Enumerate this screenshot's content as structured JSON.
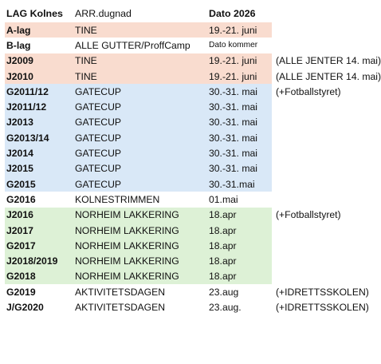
{
  "colors": {
    "pink": "#f9dccf",
    "blue": "#d9e8f7",
    "green": "#ddf1d6",
    "white": "#ffffff"
  },
  "header": {
    "lag": "LAG Kolnes",
    "arr": "ARR.dugnad",
    "dato": "Dato 2026"
  },
  "rows": [
    {
      "lag": "A-lag",
      "arr": "TINE",
      "dato": "19.-21. juni",
      "note": "",
      "color": "pink"
    },
    {
      "lag": "B-lag",
      "arr": "ALLE GUTTER/ProffCamp",
      "dato": "Dato kommer",
      "note": "",
      "color": "white"
    },
    {
      "lag": "J2009",
      "arr": "TINE",
      "dato": "19.-21. juni",
      "note": "(ALLE JENTER 14. mai)",
      "color": "pink"
    },
    {
      "lag": "J2010",
      "arr": "TINE",
      "dato": "19.-21. juni",
      "note": "(ALLE JENTER 14. mai)",
      "color": "pink"
    },
    {
      "lag": "G2011/12",
      "arr": "GATECUP",
      "dato": "30.-31. mai",
      "note": "(+Fotballstyret)",
      "color": "blue"
    },
    {
      "lag": "J2011/12",
      "arr": "GATECUP",
      "dato": "30.-31. mai",
      "note": "",
      "color": "blue"
    },
    {
      "lag": "J2013",
      "arr": "GATECUP",
      "dato": "30.-31. mai",
      "note": "",
      "color": "blue"
    },
    {
      "lag": "G2013/14",
      "arr": "GATECUP",
      "dato": "30.-31. mai",
      "note": "",
      "color": "blue"
    },
    {
      "lag": "J2014",
      "arr": "GATECUP",
      "dato": "30.-31. mai",
      "note": "",
      "color": "blue"
    },
    {
      "lag": "J2015",
      "arr": "GATECUP",
      "dato": "30.-31. mai",
      "note": "",
      "color": "blue"
    },
    {
      "lag": "G2015",
      "arr": "GATECUP",
      "dato": "30.-31.mai",
      "note": "",
      "color": "blue"
    },
    {
      "lag": "G2016",
      "arr": "KOLNESTRIMMEN",
      "dato": "01.mai",
      "note": "",
      "color": "white"
    },
    {
      "lag": "J2016",
      "arr": "NORHEIM LAKKERING",
      "dato": "18.apr",
      "note": "(+Fotballstyret)",
      "color": "green"
    },
    {
      "lag": "J2017",
      "arr": "NORHEIM LAKKERING",
      "dato": "18.apr",
      "note": "",
      "color": "green"
    },
    {
      "lag": "G2017",
      "arr": "NORHEIM LAKKERING",
      "dato": "18.apr",
      "note": "",
      "color": "green"
    },
    {
      "lag": "J2018/2019",
      "arr": "NORHEIM LAKKERING",
      "dato": "18.apr",
      "note": "",
      "color": "green"
    },
    {
      "lag": "G2018",
      "arr": "NORHEIM LAKKERING",
      "dato": "18.apr",
      "note": "",
      "color": "green"
    },
    {
      "lag": "G2019",
      "arr": "AKTIVITETSDAGEN",
      "dato": "23.aug",
      "note": "(+IDRETTSSKOLEN)",
      "color": "white"
    },
    {
      "lag": "J/G2020",
      "arr": "AKTIVITETSDAGEN",
      "dato": "23.aug.",
      "note": "(+IDRETTSSKOLEN)",
      "color": "white"
    }
  ]
}
